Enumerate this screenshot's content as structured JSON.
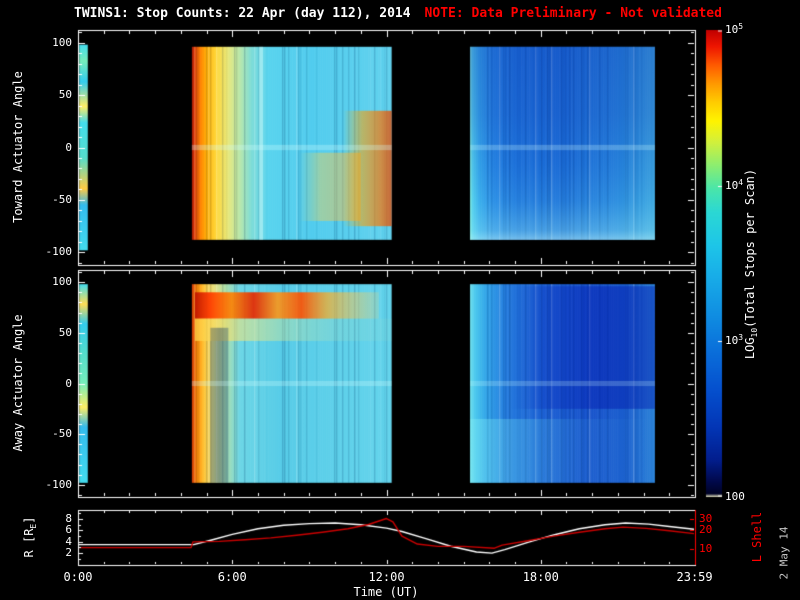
{
  "title": {
    "main": "TWINS1: Stop Counts: 22 Apr (day 112), 2014",
    "note": "NOTE: Data Preliminary - Not validated"
  },
  "colors": {
    "background": "#000000",
    "foreground": "#ffffff",
    "red": "#ff0000",
    "line_red": "#cc0000",
    "dim": "#c8c8c8"
  },
  "sidenote": "2 May 14",
  "xaxis": {
    "label": "Time (UT)",
    "range_hours": [
      0,
      24
    ],
    "ticks": [
      {
        "t": 0,
        "label": "0:00"
      },
      {
        "t": 6,
        "label": "6:00"
      },
      {
        "t": 12,
        "label": "12:00"
      },
      {
        "t": 18,
        "label": "18:00"
      },
      {
        "t": 23.983,
        "label": "23:59"
      }
    ]
  },
  "panels": {
    "toward": {
      "ylabel": "Toward Actuator Angle",
      "yticks": [
        100,
        50,
        0,
        -50,
        -100
      ]
    },
    "away": {
      "ylabel": "Away Actuator Angle",
      "yticks": [
        100,
        50,
        0,
        -50,
        -100
      ]
    },
    "bottom": {
      "r_label": {
        "pre": "R [R",
        "sub": "E",
        "post": "]"
      },
      "right_label": "L Shell",
      "left_ticks": [
        8,
        6,
        4,
        2
      ],
      "right_ticks": [
        30,
        20,
        10
      ]
    }
  },
  "colorbar": {
    "label": {
      "pre": "LOG",
      "sub": "10",
      "post": "(Total Stops per Scan)"
    },
    "tick_labels": [
      {
        "base": "10",
        "exp": "5",
        "frac": 0
      },
      {
        "base": "10",
        "exp": "4",
        "frac": 0.3333
      },
      {
        "base": "10",
        "exp": "3",
        "frac": 0.6667
      },
      {
        "text": "100",
        "frac": 1
      }
    ],
    "gradient": [
      [
        0,
        "#c00000"
      ],
      [
        0.035,
        "#ee1500"
      ],
      [
        0.075,
        "#ff5a00"
      ],
      [
        0.115,
        "#ff9900"
      ],
      [
        0.155,
        "#ffcc00"
      ],
      [
        0.195,
        "#fff400"
      ],
      [
        0.24,
        "#d2f03c"
      ],
      [
        0.29,
        "#8cee70"
      ],
      [
        0.34,
        "#4ae6aa"
      ],
      [
        0.39,
        "#2bd8d4"
      ],
      [
        0.46,
        "#1ec6e8"
      ],
      [
        0.53,
        "#18ace8"
      ],
      [
        0.61,
        "#108ee2"
      ],
      [
        0.69,
        "#0a6eda"
      ],
      [
        0.77,
        "#0550ce"
      ],
      [
        0.85,
        "#0336b6"
      ],
      [
        0.92,
        "#021e8e"
      ],
      [
        0.965,
        "#010a4e"
      ],
      [
        0.993,
        "#000326"
      ],
      [
        1,
        "#f0f0c8"
      ]
    ]
  },
  "chart_data": [
    {
      "type": "heatmap",
      "name": "toward_actuator_angle_spectrogram",
      "yrange": [
        -112,
        112
      ],
      "value_scale": "log10 total stops per scan, 100 to 1e5",
      "segments": [
        {
          "t0": 0.05,
          "t1": 0.38,
          "a0": 98,
          "a1": -98,
          "dir": "v",
          "stops": [
            [
              0,
              "#44ddee"
            ],
            [
              0.08,
              "#77eebb"
            ],
            [
              0.18,
              "#33ccee"
            ],
            [
              0.3,
              "#ffee66"
            ],
            [
              0.38,
              "#44ddee"
            ],
            [
              0.55,
              "#55ddcc"
            ],
            [
              0.7,
              "#ffcc44"
            ],
            [
              0.78,
              "#33bbee"
            ],
            [
              1,
              "#44ddee"
            ]
          ]
        },
        {
          "t0": 4.43,
          "t1": 12.2,
          "a0": 96,
          "a1": -88,
          "dir": "h",
          "stripes": true,
          "stops": [
            [
              0,
              "#991100"
            ],
            [
              0.012,
              "#dd3300"
            ],
            [
              0.035,
              "#ff7700"
            ],
            [
              0.07,
              "#ffaa00"
            ],
            [
              0.12,
              "#ffd633"
            ],
            [
              0.18,
              "#e8e87a"
            ],
            [
              0.24,
              "#b8e8aa"
            ],
            [
              0.3,
              "#7adcd8"
            ],
            [
              0.38,
              "#58d4ee"
            ],
            [
              0.6,
              "#4fccee"
            ],
            [
              1,
              "#60d2ee"
            ]
          ]
        },
        {
          "t0": 8.6,
          "t1": 11,
          "a0": -5,
          "a1": -70,
          "dir": "h",
          "stops": [
            [
              0,
              "rgba(255,220,80,0)"
            ],
            [
              0.35,
              "rgba(255,210,70,0.4)"
            ],
            [
              0.7,
              "rgba(255,190,60,0.45)"
            ],
            [
              1,
              "rgba(255,170,40,0.5)"
            ]
          ]
        },
        {
          "t0": 10.3,
          "t1": 12.2,
          "a0": 35,
          "a1": -75,
          "dir": "h",
          "stops": [
            [
              0,
              "rgba(255,180,0,0)"
            ],
            [
              0.4,
              "rgba(255,160,0,0.55)"
            ],
            [
              0.8,
              "rgba(250,110,0,0.7)"
            ],
            [
              1,
              "rgba(230,70,0,0.75)"
            ]
          ]
        },
        {
          "t0": 7.05,
          "t1": 7.2,
          "a0": 96,
          "a1": -88,
          "dir": "h",
          "stops": [
            [
              0,
              "rgba(220,255,255,0.45)"
            ],
            [
              1,
              "rgba(220,255,255,0.45)"
            ]
          ]
        },
        {
          "t0": 4.43,
          "t1": 12.2,
          "a0": 2.5,
          "a1": -2.5,
          "dir": "h",
          "stops": [
            [
              0,
              "rgba(210,255,255,0.3)"
            ],
            [
              1,
              "rgba(210,255,255,0.3)"
            ]
          ]
        },
        {
          "t0": 15.25,
          "t1": 22.44,
          "a0": 96,
          "a1": -88,
          "dir": "h",
          "stripes": true,
          "stops": [
            [
              0,
              "#7ae8dd"
            ],
            [
              0.015,
              "#4cccee"
            ],
            [
              0.05,
              "#32a8ec"
            ],
            [
              0.12,
              "#2488e6"
            ],
            [
              0.25,
              "#1d76de"
            ],
            [
              0.5,
              "#1b70da"
            ],
            [
              0.75,
              "#2280de"
            ],
            [
              0.9,
              "#2e94e0"
            ],
            [
              1,
              "#3aa4e0"
            ]
          ]
        },
        {
          "t0": 15.25,
          "t1": 22.44,
          "a0": 96,
          "a1": -88,
          "dir": "v",
          "stops": [
            [
              0,
              "rgba(10,40,170,0.3)"
            ],
            [
              0.35,
              "rgba(10,40,170,0.22)"
            ],
            [
              0.6,
              "rgba(10,40,170,0.08)"
            ],
            [
              0.8,
              "rgba(120,230,240,0.1)"
            ],
            [
              0.95,
              "rgba(150,240,245,0.35)"
            ],
            [
              1,
              "rgba(190,250,250,0.55)"
            ]
          ]
        },
        {
          "t0": 15.25,
          "t1": 22.44,
          "a0": 2.5,
          "a1": -2.5,
          "dir": "h",
          "stops": [
            [
              0,
              "rgba(210,255,255,0.25)"
            ],
            [
              1,
              "rgba(210,255,255,0.25)"
            ]
          ]
        }
      ]
    },
    {
      "type": "heatmap",
      "name": "away_actuator_angle_spectrogram",
      "yrange": [
        -112,
        112
      ],
      "value_scale": "log10 total stops per scan, 100 to 1e5",
      "segments": [
        {
          "t0": 0.05,
          "t1": 0.38,
          "a0": 98,
          "a1": -98,
          "dir": "v",
          "stops": [
            [
              0,
              "#44ddee"
            ],
            [
              0.1,
              "#ffdd55"
            ],
            [
              0.2,
              "#33ccee"
            ],
            [
              0.35,
              "#55ddcc"
            ],
            [
              0.5,
              "#77eebb"
            ],
            [
              0.62,
              "#ffee66"
            ],
            [
              0.72,
              "#33bbee"
            ],
            [
              1,
              "#44ddee"
            ]
          ]
        },
        {
          "t0": 4.43,
          "t1": 12.2,
          "a0": 98,
          "a1": -98,
          "dir": "h",
          "stripes": true,
          "stops": [
            [
              0,
              "#cc3300"
            ],
            [
              0.025,
              "#ff8800"
            ],
            [
              0.06,
              "#ffc433"
            ],
            [
              0.11,
              "#e8e07a"
            ],
            [
              0.17,
              "#aadfaa"
            ],
            [
              0.24,
              "#6ad6e6"
            ],
            [
              0.45,
              "#55cce8"
            ],
            [
              1,
              "#62d4ec"
            ]
          ]
        },
        {
          "t0": 4.55,
          "t1": 11.7,
          "a0": 90,
          "a1": 64,
          "dir": "h",
          "stops": [
            [
              0,
              "rgba(190,20,0,0.92)"
            ],
            [
              0.08,
              "rgba(255,60,0,0.95)"
            ],
            [
              0.2,
              "rgba(255,130,0,0.9)"
            ],
            [
              0.32,
              "rgba(230,40,0,0.92)"
            ],
            [
              0.45,
              "rgba(255,150,20,0.88)"
            ],
            [
              0.58,
              "rgba(255,80,0,0.9)"
            ],
            [
              0.72,
              "rgba(255,170,30,0.7)"
            ],
            [
              0.88,
              "rgba(255,200,80,0.45)"
            ],
            [
              1,
              "rgba(255,210,100,0.2)"
            ]
          ]
        },
        {
          "t0": 4.55,
          "t1": 12.2,
          "a0": 64,
          "a1": 42,
          "dir": "h",
          "stops": [
            [
              0,
              "rgba(255,210,70,0.75)"
            ],
            [
              0.25,
              "rgba(245,230,120,0.55)"
            ],
            [
              0.5,
              "rgba(215,235,150,0.35)"
            ],
            [
              0.75,
              "rgba(180,225,180,0.2)"
            ],
            [
              1,
              "rgba(160,220,190,0.12)"
            ]
          ]
        },
        {
          "t0": 5.15,
          "t1": 5.85,
          "a0": 55,
          "a1": -98,
          "dir": "h",
          "stops": [
            [
              0,
              "rgba(0,50,110,0.3)"
            ],
            [
              0.5,
              "rgba(0,40,100,0.38)"
            ],
            [
              1,
              "rgba(0,50,110,0.3)"
            ]
          ]
        },
        {
          "t0": 4.43,
          "t1": 12.2,
          "a0": 2.5,
          "a1": -2.5,
          "dir": "h",
          "stops": [
            [
              0,
              "rgba(210,255,255,0.28)"
            ],
            [
              1,
              "rgba(210,255,255,0.28)"
            ]
          ]
        },
        {
          "t0": 15.25,
          "t1": 22.44,
          "a0": 98,
          "a1": -98,
          "dir": "h",
          "stripes": true,
          "stops": [
            [
              0,
              "#6ce0ee"
            ],
            [
              0.03,
              "#46c6ee"
            ],
            [
              0.09,
              "#2fa2e8"
            ],
            [
              0.2,
              "#237ade"
            ],
            [
              0.4,
              "#1c60d4"
            ],
            [
              0.65,
              "#1652cc"
            ],
            [
              0.85,
              "#1b60d0"
            ],
            [
              1,
              "#2a82d8"
            ]
          ]
        },
        {
          "t0": 16.8,
          "t1": 22.44,
          "a0": 96,
          "a1": -25,
          "dir": "h",
          "stops": [
            [
              0,
              "rgba(5,35,185,0)"
            ],
            [
              0.3,
              "rgba(5,35,185,0.35)"
            ],
            [
              0.65,
              "rgba(3,28,175,0.5)"
            ],
            [
              1,
              "rgba(3,28,175,0.45)"
            ]
          ]
        },
        {
          "t0": 15.25,
          "t1": 22.44,
          "a0": -35,
          "a1": -98,
          "dir": "h",
          "stops": [
            [
              0,
              "rgba(135,240,245,0.4)"
            ],
            [
              0.3,
              "rgba(110,232,242,0.25)"
            ],
            [
              0.6,
              "rgba(85,205,235,0.1)"
            ],
            [
              1,
              "rgba(85,205,235,0)"
            ]
          ]
        },
        {
          "t0": 15.25,
          "t1": 22.44,
          "a0": 2.5,
          "a1": -2.5,
          "dir": "h",
          "stops": [
            [
              0,
              "rgba(210,255,255,0.22)"
            ],
            [
              1,
              "rgba(210,255,255,0.22)"
            ]
          ]
        }
      ]
    },
    {
      "type": "line",
      "name": "ephemeris",
      "series": [
        {
          "name": "R [RE]",
          "color": "#ffffff",
          "axis": "left",
          "points": [
            [
              0,
              3.5
            ],
            [
              4.5,
              3.5
            ],
            [
              5.2,
              4.3
            ],
            [
              6,
              5.3
            ],
            [
              7,
              6.3
            ],
            [
              8,
              6.9
            ],
            [
              9,
              7.2
            ],
            [
              10,
              7.3
            ],
            [
              11,
              7.0
            ],
            [
              12,
              6.4
            ],
            [
              12.6,
              5.8
            ],
            [
              13.5,
              4.6
            ],
            [
              14.5,
              3.2
            ],
            [
              15.5,
              2.2
            ],
            [
              16.1,
              2.0
            ],
            [
              16.6,
              2.6
            ],
            [
              17.5,
              3.9
            ],
            [
              18.5,
              5.2
            ],
            [
              19.5,
              6.3
            ],
            [
              20.5,
              7.0
            ],
            [
              21.3,
              7.3
            ],
            [
              22.2,
              7.1
            ],
            [
              23,
              6.7
            ],
            [
              23.98,
              6.2
            ]
          ]
        },
        {
          "name": "L Shell",
          "color": "#cc0000",
          "axis": "right",
          "points": [
            [
              0,
              10.5
            ],
            [
              4.4,
              10.5
            ],
            [
              4.47,
              13
            ],
            [
              5.5,
              13.2
            ],
            [
              6.5,
              14
            ],
            [
              7.5,
              15
            ],
            [
              8.5,
              16.5
            ],
            [
              9.5,
              18.5
            ],
            [
              10.5,
              21
            ],
            [
              11.3,
              24.5
            ],
            [
              12,
              30.5
            ],
            [
              12.25,
              27
            ],
            [
              12.6,
              16
            ],
            [
              13.2,
              12
            ],
            [
              14,
              11
            ],
            [
              15,
              11
            ],
            [
              16.2,
              10.3
            ],
            [
              16.5,
              11.5
            ],
            [
              17.5,
              13.5
            ],
            [
              18.5,
              16
            ],
            [
              19.5,
              18.5
            ],
            [
              20.5,
              21
            ],
            [
              21.2,
              22.3
            ],
            [
              22.1,
              21.3
            ],
            [
              23,
              19.5
            ],
            [
              23.98,
              17.5
            ]
          ]
        }
      ]
    }
  ]
}
